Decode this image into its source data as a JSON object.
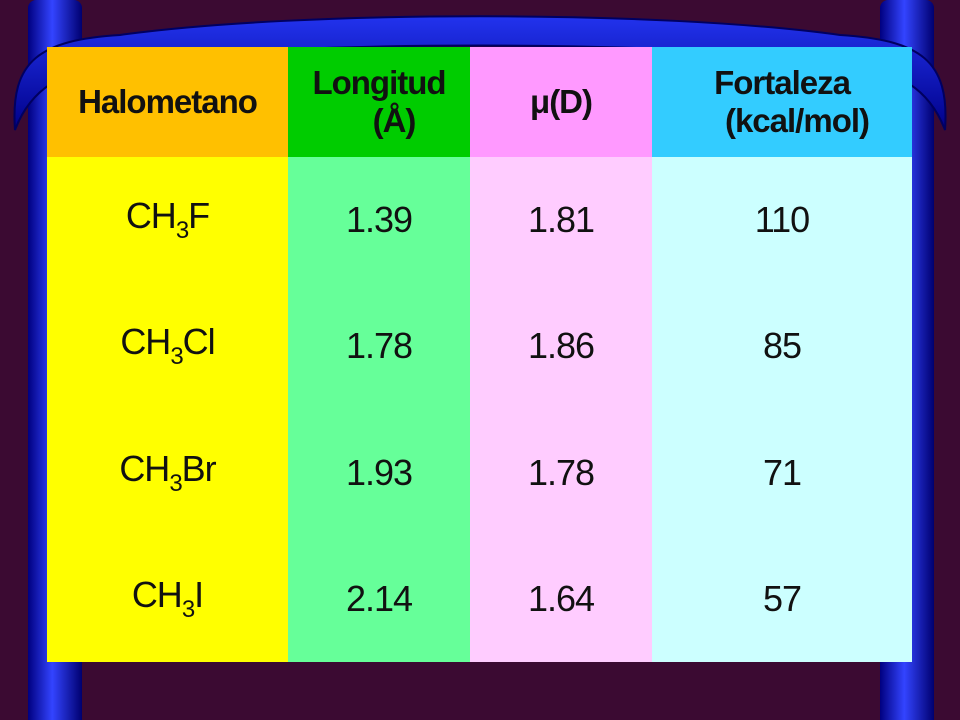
{
  "table": {
    "header": [
      [
        "Halometano"
      ],
      [
        "Longitud",
        "(Å)"
      ],
      [
        "μ(D)"
      ],
      [
        "Fortaleza",
        "(kcal/mol)"
      ]
    ],
    "rows": [
      [
        [
          "CH",
          "3",
          "F"
        ],
        1.39,
        1.81,
        110
      ],
      [
        [
          "CH",
          "3",
          "Cl"
        ],
        1.78,
        1.86,
        85
      ],
      [
        [
          "CH",
          "3",
          "Br"
        ],
        1.93,
        1.78,
        71
      ],
      [
        [
          "CH",
          "3",
          "I"
        ],
        2.14,
        1.64,
        57
      ]
    ]
  }
}
